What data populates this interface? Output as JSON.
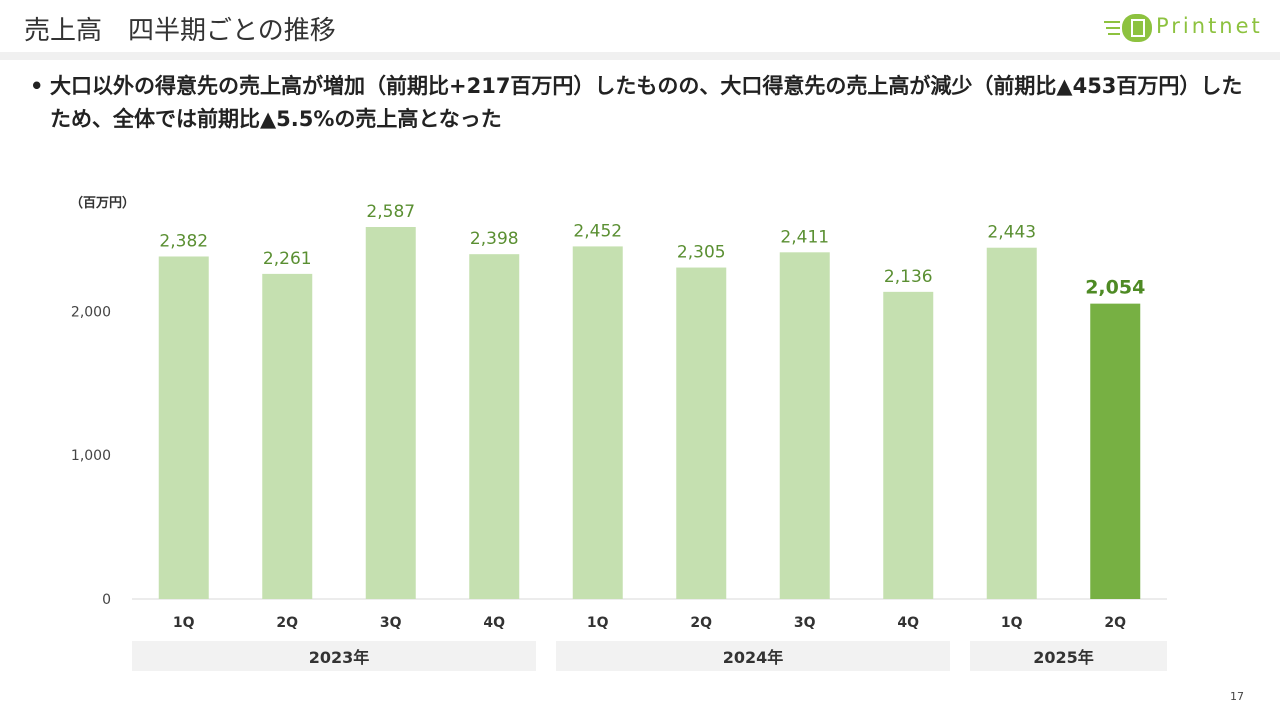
{
  "slide": {
    "title": "売上高　四半期ごとの推移",
    "logo_text": "Printnet",
    "bullet": "大口以外の得意先の売上高が増加（前期比+217百万円）したものの、大口得意先の売上高が減少（前期比▲453百万円）したため、全体では前期比▲5.5%の売上高となった",
    "page_number": "17"
  },
  "colors": {
    "bar_default": "#c5e0b0",
    "bar_highlight": "#77b043",
    "label_default": "#5a8f32",
    "label_highlight": "#4e8a24",
    "year_band": "#f2f2f2",
    "logo": "#8dc23f"
  },
  "chart_data": {
    "type": "bar",
    "unit_label": "（百万円）",
    "categories": [
      "1Q",
      "2Q",
      "3Q",
      "4Q",
      "1Q",
      "2Q",
      "3Q",
      "4Q",
      "1Q",
      "2Q"
    ],
    "values": [
      2382,
      2261,
      2587,
      2398,
      2452,
      2305,
      2411,
      2136,
      2443,
      2054
    ],
    "value_labels": [
      "2,382",
      "2,261",
      "2,587",
      "2,398",
      "2,452",
      "2,305",
      "2,411",
      "2,136",
      "2,443",
      "2,054"
    ],
    "highlight_index": 9,
    "year_groups": [
      {
        "label": "2023年",
        "count": 4
      },
      {
        "label": "2024年",
        "count": 4
      },
      {
        "label": "2025年",
        "count": 2
      }
    ],
    "yticks": [
      0,
      1000,
      2000
    ],
    "ytick_labels": [
      "0",
      "1,000",
      "2,000"
    ],
    "ylim": [
      0,
      2587
    ],
    "grid": false,
    "legend": "none"
  }
}
